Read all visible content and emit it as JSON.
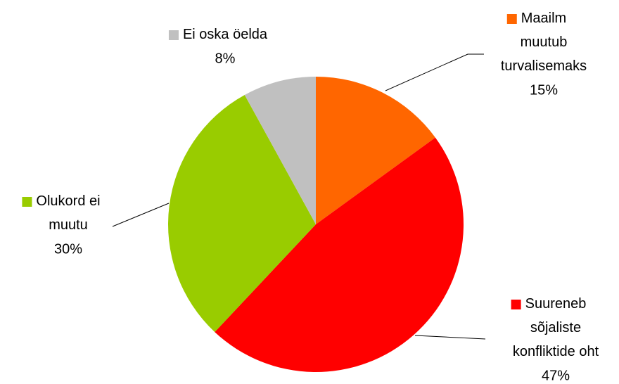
{
  "chart_data": {
    "type": "pie",
    "categories": [
      "Maailm muutub turvalisemaks",
      "Suureneb sõjaliste konfliktide oht",
      "Olukord ei muutu",
      "Ei oska öelda"
    ],
    "values": [
      15,
      47,
      30,
      8
    ],
    "value_labels": [
      "15%",
      "47%",
      "30%",
      "8%"
    ],
    "colors": [
      "#FF6600",
      "#FF0000",
      "#99CC00",
      "#C0C0C0"
    ]
  }
}
